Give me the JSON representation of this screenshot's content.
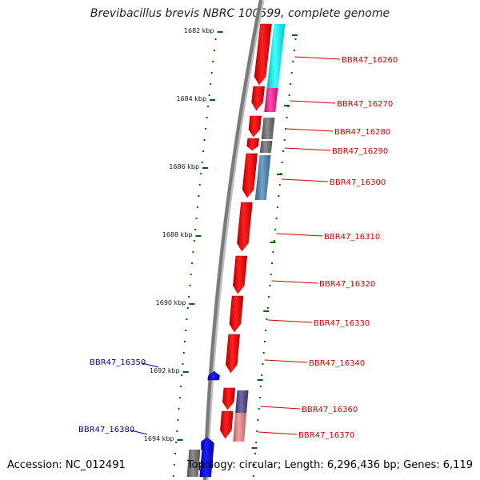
{
  "title": "Brevibacillus brevis NBRC 100599, complete genome",
  "accession": "Accession: NC_012491",
  "topology": "Topology: circular; Length: 6,296,436 bp; Genes: 6,119",
  "colors": {
    "forward_gene": "#ff0000",
    "reverse_gene": "#0000ff",
    "label_forward": "#cc0000",
    "label_reverse": "#000099",
    "backbone": "#808080",
    "tick": "#006600"
  },
  "ticks": [
    {
      "label": "1682 kbp",
      "kbp": 1682
    },
    {
      "label": "1684 kbp",
      "kbp": 1684
    },
    {
      "label": "1686 kbp",
      "kbp": 1686
    },
    {
      "label": "1688 kbp",
      "kbp": 1688
    },
    {
      "label": "1690 kbp",
      "kbp": 1690
    },
    {
      "label": "1692 kbp",
      "kbp": 1692
    },
    {
      "label": "1694 kbp",
      "kbp": 1694
    }
  ],
  "genes": [
    {
      "locus": "BBR47_16260",
      "strand": "+",
      "cog_color": "#00ffff"
    },
    {
      "locus": "BBR47_16270",
      "strand": "+",
      "cog_color": "#ff1493"
    },
    {
      "locus": "BBR47_16280",
      "strand": "+",
      "cog_color": "#696969"
    },
    {
      "locus": "BBR47_16290",
      "strand": "+",
      "cog_color": "#696969"
    },
    {
      "locus": "BBR47_16300",
      "strand": "+",
      "cog_color": "#4682b4"
    },
    {
      "locus": "BBR47_16310",
      "strand": "+",
      "cog_color": ""
    },
    {
      "locus": "BBR47_16320",
      "strand": "+",
      "cog_color": ""
    },
    {
      "locus": "BBR47_16330",
      "strand": "+",
      "cog_color": ""
    },
    {
      "locus": "BBR47_16340",
      "strand": "+",
      "cog_color": ""
    },
    {
      "locus": "BBR47_16350",
      "strand": "-",
      "cog_color": ""
    },
    {
      "locus": "BBR47_16360",
      "strand": "+",
      "cog_color": "#483d8b"
    },
    {
      "locus": "BBR47_16370",
      "strand": "+",
      "cog_color": "#f08080"
    },
    {
      "locus": "BBR47_16380",
      "strand": "-",
      "cog_color": "#696969"
    }
  ]
}
